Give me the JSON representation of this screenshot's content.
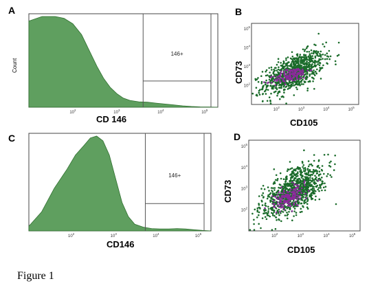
{
  "chart_data": [
    {
      "panel": "A",
      "type": "area",
      "xlabel": "CD 146",
      "ylabel": "Count",
      "x_scale": "log",
      "x_tick_labels": [
        "10^2",
        "10^3",
        "10^4",
        "10^5"
      ],
      "x_log": [
        1.0,
        1.3,
        1.6,
        1.8,
        2.0,
        2.2,
        2.4,
        2.55,
        2.7,
        2.85,
        3.0,
        3.15,
        3.3,
        3.5,
        3.7,
        3.9,
        4.1,
        4.3,
        4.5,
        4.7,
        4.9,
        5.1,
        5.3
      ],
      "values": [
        0.95,
        1.0,
        1.0,
        0.98,
        0.92,
        0.8,
        0.6,
        0.45,
        0.32,
        0.22,
        0.15,
        0.1,
        0.075,
        0.06,
        0.055,
        0.045,
        0.035,
        0.025,
        0.015,
        0.008,
        0.004,
        0.002,
        0.0
      ],
      "gate": {
        "label": "146+",
        "x_start_log": 3.6
      }
    },
    {
      "panel": "B",
      "type": "scatter",
      "xlabel": "CD105",
      "ylabel": "CD73",
      "x_scale": "log",
      "y_scale": "log",
      "x_tick_labels": [
        "10^2",
        "10^3",
        "10^4",
        "10^5"
      ],
      "y_tick_labels": [
        "10^2",
        "10^3",
        "10^4",
        "10^5"
      ],
      "populations": [
        {
          "color": "#1a6b2a",
          "center_log": [
            2.7,
            2.7
          ],
          "spread_log": [
            0.6,
            0.55
          ],
          "count": 900
        },
        {
          "color": "#8a2a9a",
          "center_log": [
            2.6,
            2.55
          ],
          "spread_log": [
            0.35,
            0.22
          ],
          "count": 160
        }
      ]
    },
    {
      "panel": "C",
      "type": "area",
      "xlabel": "CD146",
      "ylabel": "",
      "x_scale": "log",
      "x_tick_labels": [
        "10^2",
        "10^3",
        "10^4",
        "10^5"
      ],
      "x_log": [
        1.0,
        1.3,
        1.6,
        1.9,
        2.1,
        2.3,
        2.45,
        2.6,
        2.75,
        2.9,
        3.05,
        3.2,
        3.35,
        3.5,
        3.7,
        3.9,
        4.1,
        4.3,
        4.5,
        4.7,
        4.9,
        5.1,
        5.3
      ],
      "values": [
        0.05,
        0.2,
        0.45,
        0.65,
        0.8,
        0.9,
        0.98,
        1.0,
        0.95,
        0.8,
        0.55,
        0.3,
        0.15,
        0.07,
        0.04,
        0.025,
        0.02,
        0.02,
        0.025,
        0.02,
        0.012,
        0.005,
        0.0
      ],
      "gate": {
        "label": "146+",
        "x_start_log": 3.75
      }
    },
    {
      "panel": "D",
      "type": "scatter",
      "xlabel": "CD105",
      "ylabel": "CD73",
      "x_scale": "log",
      "y_scale": "log",
      "x_tick_labels": [
        "10^2",
        "10^3",
        "10^4",
        "10^5"
      ],
      "y_tick_labels": [
        "10^2",
        "10^3",
        "10^4",
        "10^5"
      ],
      "populations": [
        {
          "color": "#1a6b2a",
          "center_log": [
            2.75,
            2.9
          ],
          "spread_log": [
            0.6,
            0.6
          ],
          "count": 950
        },
        {
          "color": "#8a2a9a",
          "center_log": [
            2.55,
            2.6
          ],
          "spread_log": [
            0.3,
            0.3
          ],
          "count": 170
        }
      ]
    }
  ],
  "caption": "Figure 1"
}
